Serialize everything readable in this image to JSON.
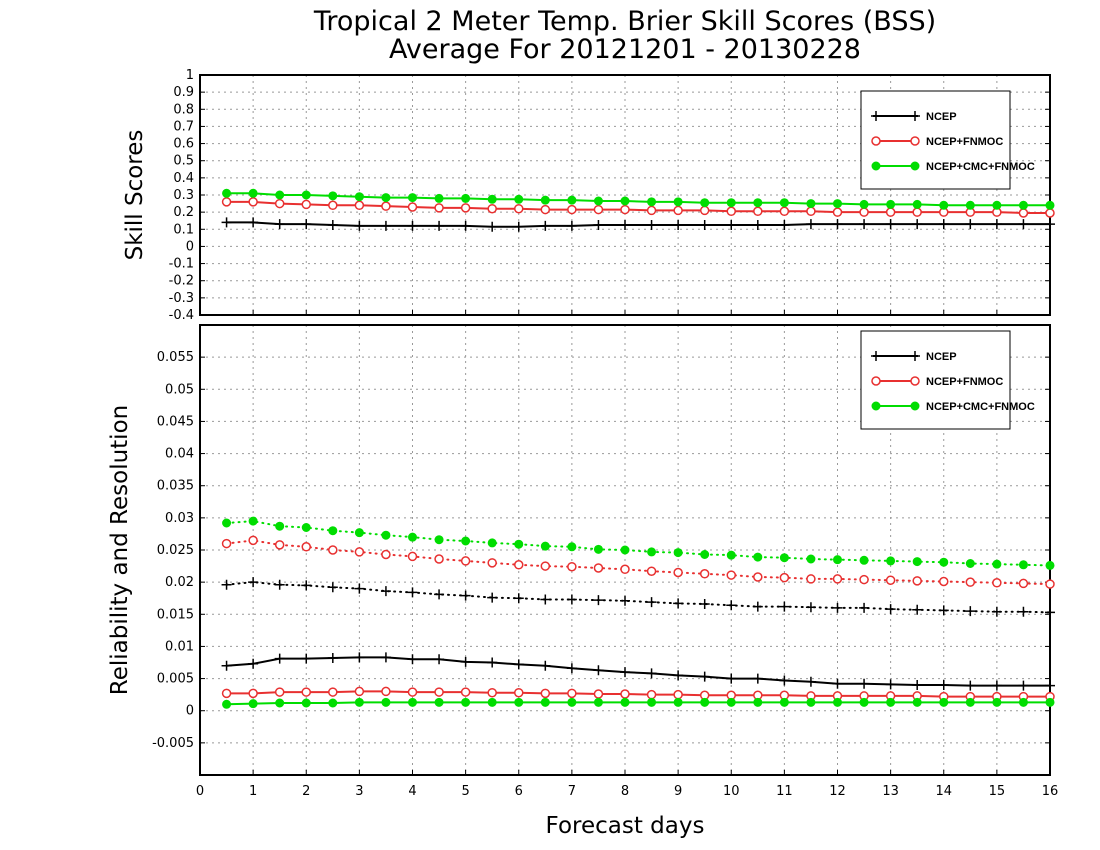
{
  "title_line1": "Tropical 2 Meter Temp. Brier Skill Scores (BSS)",
  "title_line2": "Average For 20121201 - 20130228",
  "xlabel": "Forecast days",
  "colors": {
    "ncep": "#000000",
    "fnmoc": "#e83030",
    "cmc": "#00dd00"
  },
  "chart_data": [
    {
      "type": "line",
      "ylabel": "Skill Scores",
      "xlim": [
        0,
        16
      ],
      "ylim": [
        -0.4,
        1
      ],
      "yticks": [
        -0.4,
        -0.3,
        -0.2,
        -0.1,
        0,
        0.1,
        0.2,
        0.3,
        0.4,
        0.5,
        0.6,
        0.7,
        0.8,
        0.9,
        1
      ],
      "ytick_labels": [
        "-0.4",
        "-0.3",
        "-0.2",
        "-0.1",
        "0",
        "0.1",
        "0.2",
        "0.3",
        "0.4",
        "0.5",
        "0.6",
        "0.7",
        "0.8",
        "0.9",
        "1"
      ],
      "xticks": [
        0,
        1,
        2,
        3,
        4,
        5,
        6,
        7,
        8,
        9,
        10,
        11,
        12,
        13,
        14,
        15,
        16
      ],
      "xtick_labels": [
        "0",
        "1",
        "2",
        "3",
        "4",
        "5",
        "6",
        "7",
        "8",
        "9",
        "10",
        "11",
        "12",
        "13",
        "14",
        "15",
        "16"
      ],
      "grid": true,
      "legend_position": "top-right",
      "x": [
        0.5,
        1,
        1.5,
        2,
        2.5,
        3,
        3.5,
        4,
        4.5,
        5,
        5.5,
        6,
        6.5,
        7,
        7.5,
        8,
        8.5,
        9,
        9.5,
        10,
        10.5,
        11,
        11.5,
        12,
        12.5,
        13,
        13.5,
        14,
        14.5,
        15,
        15.5,
        16
      ],
      "series": [
        {
          "name": "NCEP",
          "color_key": "ncep",
          "marker": "plus",
          "line": "solid",
          "values": [
            0.14,
            0.14,
            0.13,
            0.13,
            0.125,
            0.12,
            0.12,
            0.12,
            0.12,
            0.12,
            0.115,
            0.115,
            0.12,
            0.12,
            0.125,
            0.125,
            0.125,
            0.125,
            0.125,
            0.125,
            0.125,
            0.125,
            0.13,
            0.13,
            0.13,
            0.13,
            0.13,
            0.13,
            0.13,
            0.13,
            0.13,
            0.13
          ]
        },
        {
          "name": "NCEP+FNMOC",
          "color_key": "fnmoc",
          "marker": "circle",
          "line": "solid",
          "values": [
            0.26,
            0.26,
            0.25,
            0.245,
            0.24,
            0.24,
            0.235,
            0.23,
            0.225,
            0.225,
            0.22,
            0.22,
            0.215,
            0.215,
            0.215,
            0.215,
            0.21,
            0.21,
            0.21,
            0.205,
            0.205,
            0.205,
            0.205,
            0.2,
            0.2,
            0.2,
            0.2,
            0.2,
            0.2,
            0.2,
            0.195,
            0.195
          ]
        },
        {
          "name": "NCEP+CMC+FNMOC",
          "color_key": "cmc",
          "marker": "dot",
          "line": "solid",
          "values": [
            0.31,
            0.31,
            0.3,
            0.3,
            0.295,
            0.29,
            0.285,
            0.285,
            0.28,
            0.28,
            0.275,
            0.275,
            0.27,
            0.27,
            0.265,
            0.265,
            0.26,
            0.26,
            0.255,
            0.255,
            0.255,
            0.255,
            0.25,
            0.25,
            0.245,
            0.245,
            0.245,
            0.24,
            0.24,
            0.24,
            0.24,
            0.24
          ]
        }
      ]
    },
    {
      "type": "line",
      "ylabel": "Reliability and Resolution",
      "xlim": [
        0,
        16
      ],
      "ylim": [
        -0.01,
        0.06
      ],
      "yticks": [
        -0.005,
        0,
        0.005,
        0.01,
        0.015,
        0.02,
        0.025,
        0.03,
        0.035,
        0.04,
        0.045,
        0.05,
        0.055
      ],
      "ytick_labels": [
        "-0.005",
        "0",
        "0.005",
        "0.01",
        "0.015",
        "0.02",
        "0.025",
        "0.03",
        "0.035",
        "0.04",
        "0.045",
        "0.05",
        "0.055"
      ],
      "xticks": [
        0,
        1,
        2,
        3,
        4,
        5,
        6,
        7,
        8,
        9,
        10,
        11,
        12,
        13,
        14,
        15,
        16
      ],
      "xtick_labels": [
        "0",
        "1",
        "2",
        "3",
        "4",
        "5",
        "6",
        "7",
        "8",
        "9",
        "10",
        "11",
        "12",
        "13",
        "14",
        "15",
        "16"
      ],
      "grid": true,
      "legend_position": "top-right",
      "x": [
        0.5,
        1,
        1.5,
        2,
        2.5,
        3,
        3.5,
        4,
        4.5,
        5,
        5.5,
        6,
        6.5,
        7,
        7.5,
        8,
        8.5,
        9,
        9.5,
        10,
        10.5,
        11,
        11.5,
        12,
        12.5,
        13,
        13.5,
        14,
        14.5,
        15,
        15.5,
        16
      ],
      "series": [
        {
          "name": "NCEP",
          "color_key": "ncep",
          "marker": "plus",
          "line": "solid",
          "values": [
            0.007,
            0.0073,
            0.0081,
            0.0081,
            0.0082,
            0.0083,
            0.0083,
            0.008,
            0.008,
            0.0076,
            0.0075,
            0.0072,
            0.007,
            0.0066,
            0.0063,
            0.006,
            0.0058,
            0.0055,
            0.0053,
            0.005,
            0.005,
            0.0047,
            0.0045,
            0.0042,
            0.0042,
            0.0041,
            0.004,
            0.004,
            0.0039,
            0.0039,
            0.0039,
            0.0039
          ]
        },
        {
          "name": "NCEP+FNMOC",
          "color_key": "fnmoc",
          "marker": "circle",
          "line": "solid",
          "values": [
            0.0027,
            0.0027,
            0.0029,
            0.0029,
            0.0029,
            0.003,
            0.003,
            0.0029,
            0.0029,
            0.0029,
            0.0028,
            0.0028,
            0.0027,
            0.0027,
            0.0026,
            0.0026,
            0.0025,
            0.0025,
            0.0024,
            0.0024,
            0.0024,
            0.0024,
            0.0023,
            0.0023,
            0.0023,
            0.0023,
            0.0023,
            0.0022,
            0.0022,
            0.0022,
            0.0022,
            0.0022
          ]
        },
        {
          "name": "NCEP+CMC+FNMOC",
          "color_key": "cmc",
          "marker": "dot",
          "line": "solid",
          "values": [
            0.001,
            0.0011,
            0.0012,
            0.0012,
            0.0012,
            0.0013,
            0.0013,
            0.0013,
            0.0013,
            0.0013,
            0.0013,
            0.0013,
            0.0013,
            0.0013,
            0.0013,
            0.0013,
            0.0013,
            0.0013,
            0.0013,
            0.0013,
            0.0013,
            0.0013,
            0.0013,
            0.0013,
            0.0013,
            0.0013,
            0.0013,
            0.0013,
            0.0013,
            0.0013,
            0.0013,
            0.0013
          ]
        },
        {
          "color_key": "ncep",
          "marker": "plus",
          "line": "dotted",
          "values": [
            0.0196,
            0.02,
            0.0196,
            0.0195,
            0.0192,
            0.019,
            0.0186,
            0.0184,
            0.0181,
            0.0179,
            0.0176,
            0.0175,
            0.0173,
            0.0173,
            0.0172,
            0.0171,
            0.0169,
            0.0167,
            0.0166,
            0.0164,
            0.0162,
            0.0162,
            0.0161,
            0.016,
            0.016,
            0.0158,
            0.0157,
            0.0156,
            0.0155,
            0.0154,
            0.0154,
            0.0153
          ]
        },
        {
          "color_key": "fnmoc",
          "marker": "circle",
          "line": "dotted",
          "values": [
            0.026,
            0.0265,
            0.0258,
            0.0255,
            0.025,
            0.0247,
            0.0243,
            0.024,
            0.0236,
            0.0233,
            0.023,
            0.0227,
            0.0225,
            0.0224,
            0.0222,
            0.022,
            0.0217,
            0.0215,
            0.0213,
            0.0211,
            0.0208,
            0.0207,
            0.0205,
            0.0205,
            0.0204,
            0.0203,
            0.0202,
            0.0201,
            0.02,
            0.0199,
            0.0198,
            0.0197
          ]
        },
        {
          "color_key": "cmc",
          "marker": "dot",
          "line": "dotted",
          "values": [
            0.0292,
            0.0295,
            0.0287,
            0.0285,
            0.028,
            0.0277,
            0.0273,
            0.027,
            0.0266,
            0.0264,
            0.0261,
            0.0259,
            0.0256,
            0.0255,
            0.0251,
            0.025,
            0.0247,
            0.0246,
            0.0243,
            0.0242,
            0.0239,
            0.0238,
            0.0236,
            0.0235,
            0.0234,
            0.0233,
            0.0232,
            0.0231,
            0.0229,
            0.0228,
            0.0227,
            0.0226
          ]
        }
      ]
    }
  ]
}
